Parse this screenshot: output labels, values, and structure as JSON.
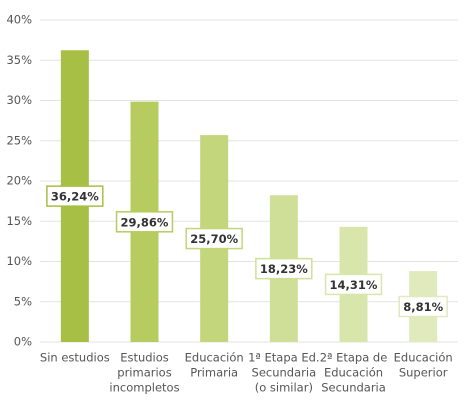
{
  "chart_data": {
    "type": "bar",
    "categories": [
      [
        "Sin estudios"
      ],
      [
        "Estudios",
        "primarios",
        "incompletos"
      ],
      [
        "Educación",
        "Primaria"
      ],
      [
        "1ª Etapa Ed.",
        "Secundaria",
        "(o similar)"
      ],
      [
        "2ª Etapa de",
        "Educación",
        "Secundaria"
      ],
      [
        "Educación",
        "Superior"
      ]
    ],
    "values": [
      36.24,
      29.86,
      25.7,
      18.23,
      14.31,
      8.81
    ],
    "value_labels": [
      "36,24%",
      "29,86%",
      "25,70%",
      "18,23%",
      "14,31%",
      "8,81%"
    ],
    "colors": [
      "#a8bf45",
      "#b6cc5f",
      "#c3d67c",
      "#cfdf97",
      "#d8e5ab",
      "#e0eabd"
    ],
    "ylim": [
      0,
      40
    ],
    "yticks": [
      {
        "value": 0,
        "label": "0%"
      },
      {
        "value": 5,
        "label": "5%"
      },
      {
        "value": 10,
        "label": "10%"
      },
      {
        "value": 15,
        "label": "15%"
      },
      {
        "value": 20,
        "label": "20%"
      },
      {
        "value": 25,
        "label": "25%"
      },
      {
        "value": 30,
        "label": "30%"
      },
      {
        "value": 35,
        "label": "35%"
      },
      {
        "value": 40,
        "label": "40%"
      }
    ],
    "grid": true
  }
}
